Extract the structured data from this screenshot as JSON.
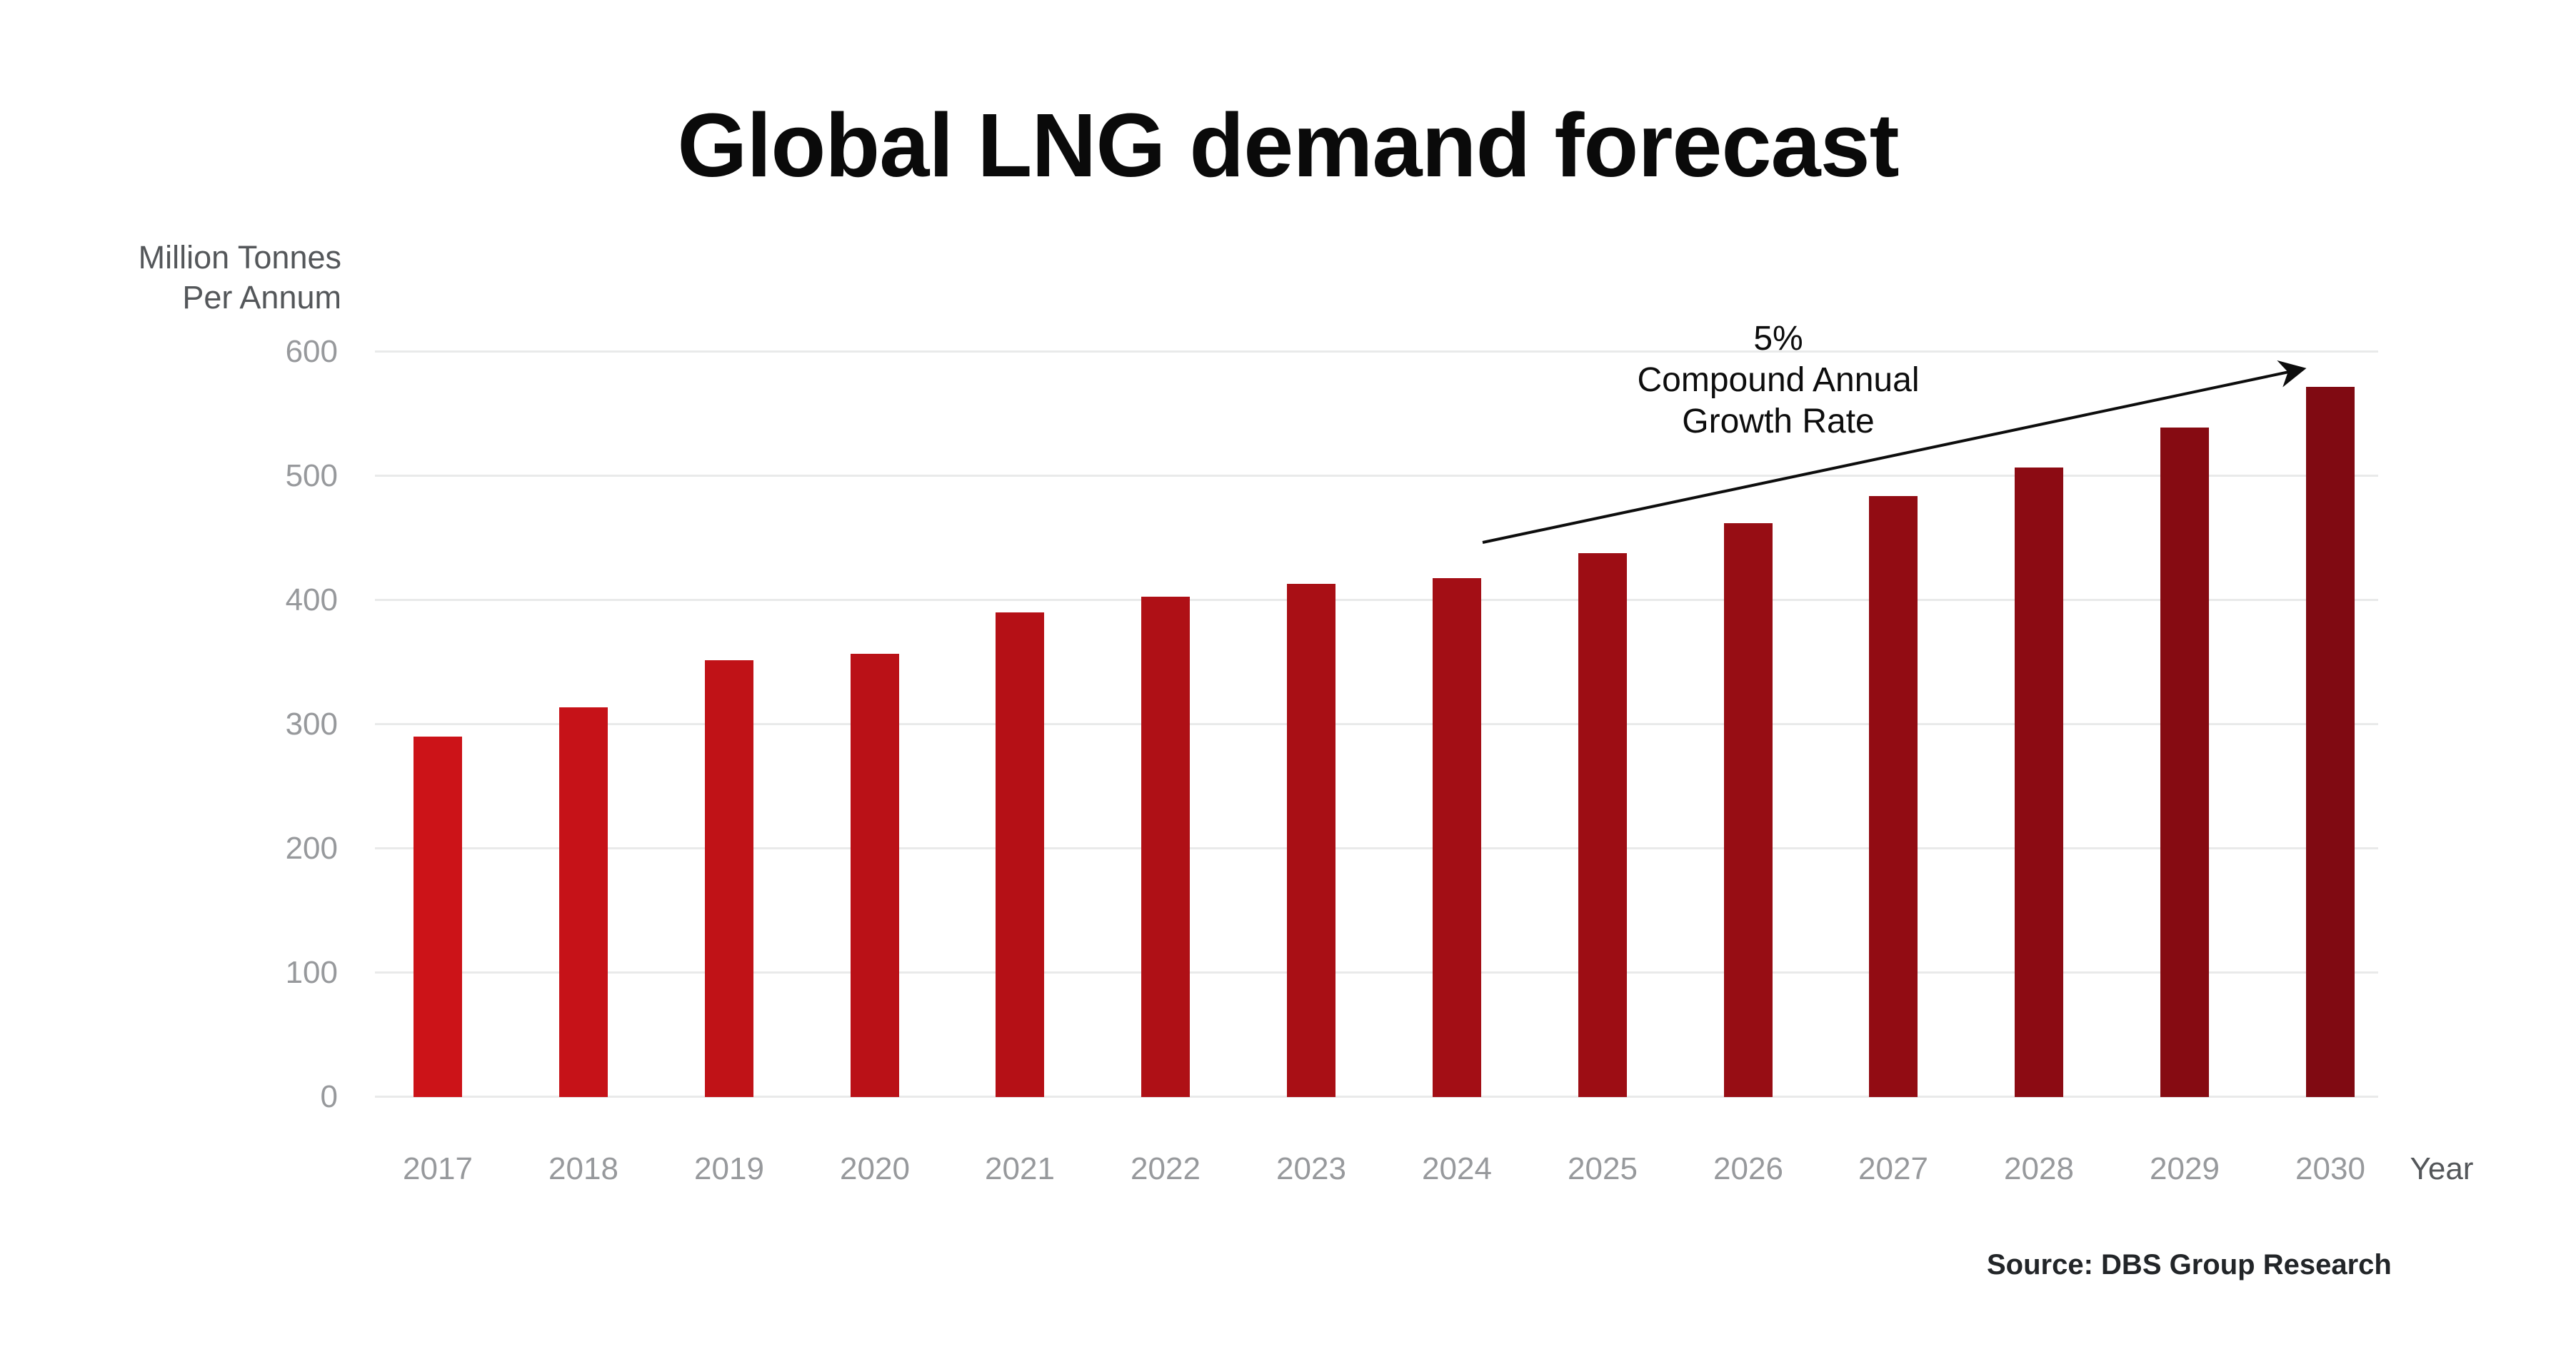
{
  "title": "Global LNG demand forecast",
  "y_axis": {
    "unit_lines": [
      "Million Tonnes",
      "Per Annum"
    ],
    "ticks": [
      "600",
      "500",
      "400",
      "300",
      "200",
      "100",
      "0"
    ]
  },
  "x_axis": {
    "axis_label": "Year"
  },
  "annotation": {
    "lines": [
      "5%",
      "Compound Annual",
      "Growth Rate"
    ]
  },
  "source": "Source: DBS Group Research",
  "colors": {
    "bar_start": "#cc1318",
    "bar_end": "#800a12",
    "grid": "#e9eaea",
    "tick_text": "#97999c",
    "axis_unit_text": "#54575a",
    "title_text": "#0a0a0a",
    "annotation_text": "#0d0d0d",
    "source_text": "#222528"
  },
  "chart_data": {
    "type": "bar",
    "title": "Global LNG demand forecast",
    "ylabel": "Million Tonnes Per Annum",
    "xlabel": "Year",
    "categories": [
      "2017",
      "2018",
      "2019",
      "2020",
      "2021",
      "2022",
      "2023",
      "2024",
      "2025",
      "2026",
      "2027",
      "2028",
      "2029",
      "2030"
    ],
    "values": [
      290,
      314,
      352,
      357,
      390,
      403,
      413,
      418,
      438,
      462,
      484,
      507,
      539,
      572
    ],
    "ylim": [
      0,
      600
    ],
    "ytick_step": 100,
    "grid": true,
    "legend_position": "none",
    "bar_color_start": "#cc1318",
    "bar_color_end": "#800a12",
    "annotation": "5% Compound Annual Growth Rate",
    "source": "Source: DBS Group Research"
  }
}
